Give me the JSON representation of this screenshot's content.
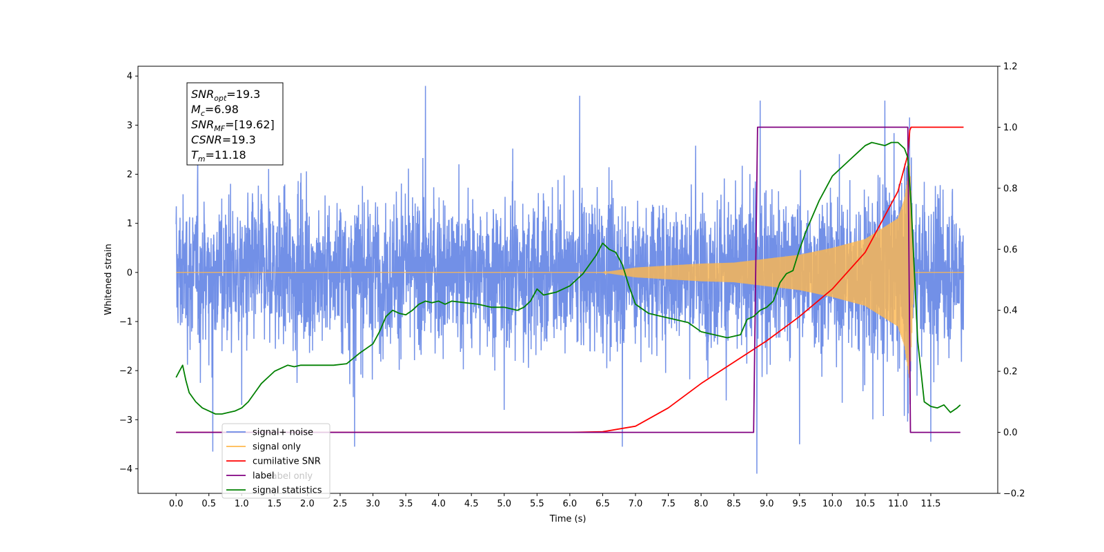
{
  "chart_data": {
    "type": "line",
    "title": "",
    "xlabel": "Time (s)",
    "ylabel": "Whitened strain",
    "xlim": [
      -0.58,
      12.52
    ],
    "ylim": [
      -4.5,
      4.2
    ],
    "y2lim": [
      -0.2,
      1.2
    ],
    "x_ticks": [
      "0.0",
      "0.5",
      "1.0",
      "1.5",
      "2.0",
      "2.5",
      "3.0",
      "3.5",
      "4.0",
      "4.5",
      "5.0",
      "5.5",
      "6.0",
      "6.5",
      "7.0",
      "7.5",
      "8.0",
      "8.5",
      "9.0",
      "9.5",
      "10.0",
      "10.5",
      "11.0",
      "11.5"
    ],
    "y_ticks": [
      "4",
      "3",
      "2",
      "1",
      "0",
      "−1",
      "−2",
      "−3",
      "−4"
    ],
    "y2_ticks": [
      "1.2",
      "1.0",
      "0.8",
      "0.6",
      "0.4",
      "0.2",
      "0.0",
      "−0.2"
    ],
    "grid": false,
    "legend_placement": "lower-left",
    "info_box": [
      {
        "main": "SNR",
        "sub": "opt",
        "value": "=19.3"
      },
      {
        "main": "M",
        "sub": "c",
        "value": "=6.98"
      },
      {
        "main": "SNR",
        "sub": "MF",
        "value": "=[19.62]"
      },
      {
        "main": "CSNR",
        "sub": "",
        "value": "=19.3"
      },
      {
        "main": "T",
        "sub": "m",
        "value": "=11.18"
      }
    ],
    "legend": [
      {
        "label": "signal+ noise",
        "color": "#6a8ae6"
      },
      {
        "label": "signal only",
        "color": "#ffb84d"
      },
      {
        "label": "cumilative SNR",
        "color": "#ff0000"
      },
      {
        "label": "label",
        "color": "#800080"
      },
      {
        "label": "signal statistics",
        "color": "#008000"
      }
    ],
    "hidden_legend_text": "label only",
    "series": [
      {
        "name": "signal+ noise",
        "axis": "left",
        "color": "#6a8ae6",
        "x_range": [
          0.0,
          12.0
        ],
        "noise_envelope": 1.1,
        "noise_peaks": [
          {
            "x": 0.56,
            "y": -3.65
          },
          {
            "x": 1.0,
            "y": -2.7
          },
          {
            "x": 2.72,
            "y": -3.55
          },
          {
            "x": 3.8,
            "y": 3.8
          },
          {
            "x": 5.0,
            "y": -2.8
          },
          {
            "x": 6.15,
            "y": 3.6
          },
          {
            "x": 6.8,
            "y": -3.55
          },
          {
            "x": 8.85,
            "y": -4.1
          },
          {
            "x": 8.9,
            "y": 3.5
          },
          {
            "x": 9.5,
            "y": -3.5
          },
          {
            "x": 11.5,
            "y": -3.45
          },
          {
            "x": 10.8,
            "y": 3.5
          }
        ]
      },
      {
        "name": "signal only",
        "axis": "left",
        "color": "#ffb84d",
        "x": [
          0.0,
          6.5,
          7.0,
          7.5,
          8.0,
          8.5,
          9.0,
          9.5,
          10.0,
          10.5,
          11.0,
          11.1,
          11.18,
          11.25,
          12.0
        ],
        "envelope": [
          0.0,
          0.0,
          0.1,
          0.14,
          0.18,
          0.2,
          0.28,
          0.36,
          0.5,
          0.68,
          1.1,
          1.5,
          2.2,
          0.0,
          0.0
        ]
      },
      {
        "name": "cumilative SNR",
        "axis": "right",
        "color": "#ff0000",
        "x": [
          0.0,
          6.0,
          6.5,
          7.0,
          7.5,
          8.0,
          8.5,
          9.0,
          9.5,
          10.0,
          10.5,
          11.0,
          11.15,
          11.18,
          11.2,
          12.0
        ],
        "values": [
          0.0,
          0.0,
          0.002,
          0.02,
          0.08,
          0.16,
          0.23,
          0.3,
          0.38,
          0.47,
          0.59,
          0.79,
          0.91,
          0.99,
          1.0,
          1.0
        ]
      },
      {
        "name": "label",
        "axis": "right",
        "color": "#800080",
        "x": [
          0.0,
          8.8,
          8.86,
          11.15,
          11.19,
          11.95
        ],
        "values": [
          0.0,
          0.0,
          1.0,
          1.0,
          0.0,
          0.0
        ]
      },
      {
        "name": "signal statistics",
        "axis": "right",
        "color": "#008000",
        "x": [
          0.0,
          0.05,
          0.1,
          0.15,
          0.2,
          0.3,
          0.4,
          0.5,
          0.6,
          0.7,
          0.8,
          0.9,
          1.0,
          1.1,
          1.2,
          1.3,
          1.4,
          1.5,
          1.6,
          1.7,
          1.8,
          1.9,
          2.0,
          2.2,
          2.4,
          2.6,
          2.8,
          3.0,
          3.1,
          3.2,
          3.3,
          3.4,
          3.5,
          3.6,
          3.7,
          3.8,
          3.9,
          4.0,
          4.1,
          4.2,
          4.4,
          4.6,
          4.8,
          5.0,
          5.2,
          5.3,
          5.4,
          5.5,
          5.6,
          5.8,
          6.0,
          6.1,
          6.2,
          6.3,
          6.4,
          6.5,
          6.6,
          6.7,
          6.8,
          6.9,
          7.0,
          7.2,
          7.4,
          7.6,
          7.8,
          8.0,
          8.2,
          8.4,
          8.6,
          8.7,
          8.8,
          8.9,
          9.0,
          9.1,
          9.2,
          9.3,
          9.4,
          9.5,
          9.6,
          9.7,
          9.8,
          9.9,
          10.0,
          10.1,
          10.2,
          10.3,
          10.4,
          10.5,
          10.6,
          10.7,
          10.8,
          10.9,
          11.0,
          11.1,
          11.15,
          11.2,
          11.3,
          11.4,
          11.5,
          11.6,
          11.7,
          11.8,
          11.9,
          11.95
        ],
        "values": [
          0.18,
          0.2,
          0.22,
          0.17,
          0.13,
          0.1,
          0.08,
          0.07,
          0.06,
          0.06,
          0.065,
          0.07,
          0.08,
          0.1,
          0.13,
          0.16,
          0.18,
          0.2,
          0.21,
          0.22,
          0.215,
          0.22,
          0.22,
          0.22,
          0.22,
          0.225,
          0.26,
          0.29,
          0.33,
          0.38,
          0.4,
          0.39,
          0.385,
          0.4,
          0.42,
          0.43,
          0.425,
          0.43,
          0.42,
          0.43,
          0.425,
          0.42,
          0.41,
          0.41,
          0.4,
          0.41,
          0.43,
          0.47,
          0.45,
          0.46,
          0.48,
          0.5,
          0.52,
          0.55,
          0.58,
          0.62,
          0.6,
          0.59,
          0.55,
          0.48,
          0.42,
          0.39,
          0.38,
          0.37,
          0.36,
          0.33,
          0.32,
          0.31,
          0.32,
          0.37,
          0.38,
          0.4,
          0.41,
          0.43,
          0.49,
          0.52,
          0.53,
          0.6,
          0.66,
          0.71,
          0.76,
          0.8,
          0.84,
          0.86,
          0.88,
          0.9,
          0.92,
          0.94,
          0.95,
          0.945,
          0.94,
          0.95,
          0.95,
          0.93,
          0.9,
          0.75,
          0.3,
          0.1,
          0.085,
          0.08,
          0.09,
          0.065,
          0.08,
          0.09
        ]
      }
    ]
  }
}
